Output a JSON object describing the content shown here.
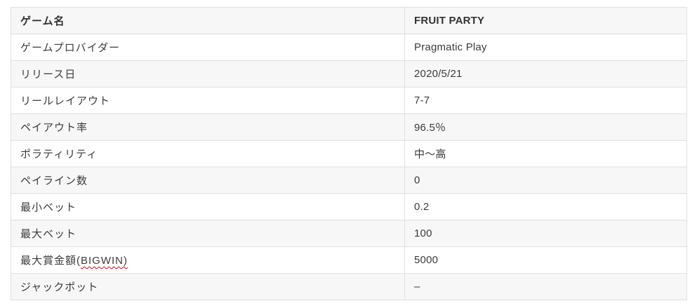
{
  "table": {
    "name": "game-info-table",
    "rows": [
      {
        "label": "ゲーム名",
        "value": "FRUIT PARTY",
        "is_header": true
      },
      {
        "label": "ゲームプロバイダー",
        "value": "Pragmatic Play"
      },
      {
        "label": "リリース日",
        "value": "2020/5/21"
      },
      {
        "label": "リールレイアウト",
        "value": "7-7"
      },
      {
        "label": "ペイアウト率",
        "value": "96.5％"
      },
      {
        "label": "ポラティリティ",
        "value": "中～高"
      },
      {
        "label": "ペイライン数",
        "value": "0"
      },
      {
        "label": "最小ベット",
        "value": "0.2"
      },
      {
        "label": "最大ベット",
        "value": "100"
      },
      {
        "label": "最大賞金額(",
        "label_squiggle": "BIGWIN)",
        "value": "5000"
      },
      {
        "label": "ジャックポット",
        "value": "–"
      }
    ],
    "colors": {
      "border": "#e0e0e0",
      "stripe": "#f7f7f7",
      "text": "#3b3b3b",
      "header_text": "#333333",
      "squiggle": "#e60000",
      "background": "#ffffff"
    }
  }
}
